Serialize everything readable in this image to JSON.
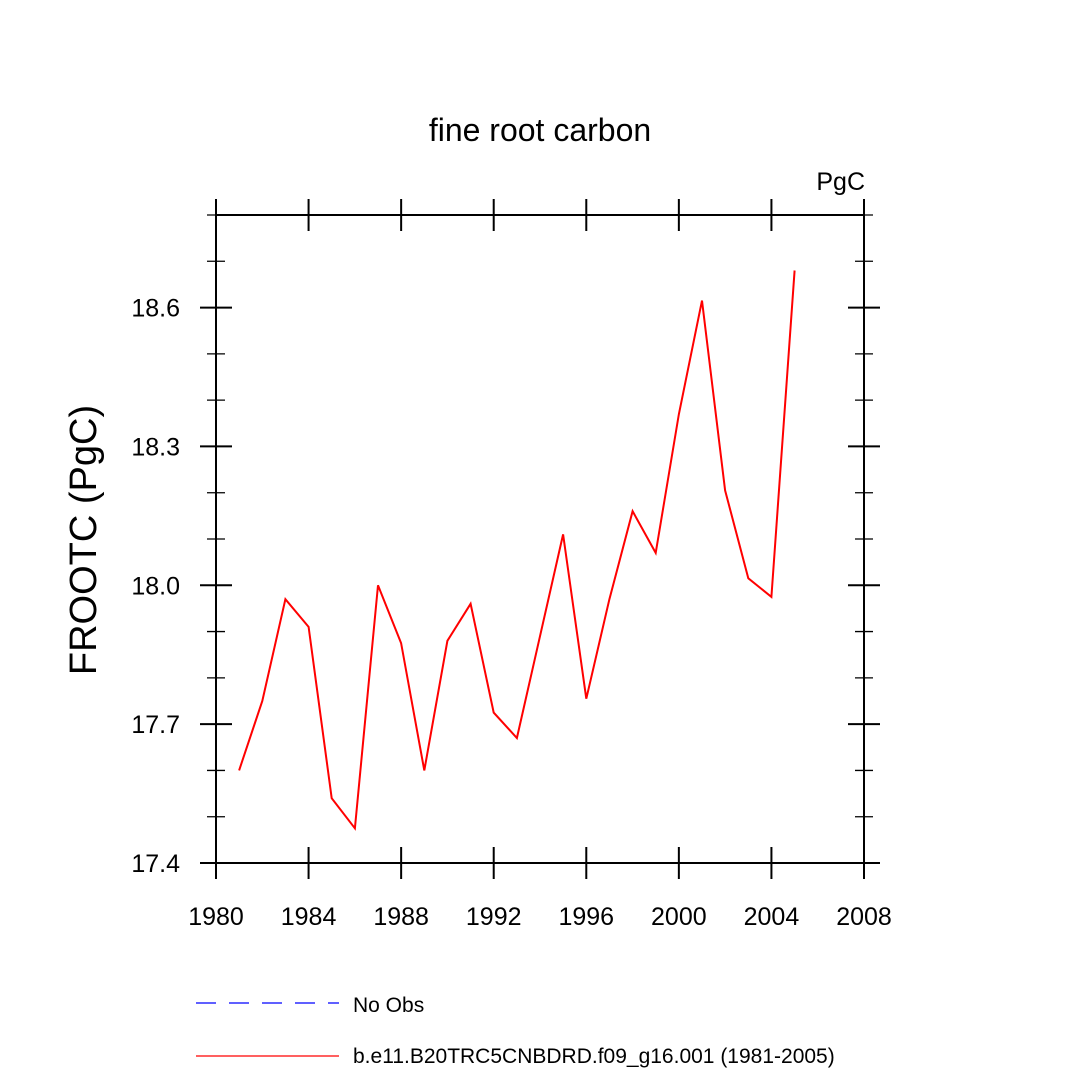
{
  "chart_data": {
    "type": "line",
    "title": "fine root carbon",
    "units_label": "PgC",
    "xlabel": "",
    "ylabel": "FROOTC  (PgC)",
    "xlim": [
      1980,
      2008
    ],
    "ylim": [
      17.4,
      18.8
    ],
    "x_ticks": [
      1980,
      1984,
      1988,
      1992,
      1996,
      2000,
      2004,
      2008
    ],
    "y_ticks": [
      17.4,
      17.7,
      18.0,
      18.3,
      18.6
    ],
    "y_tick_labels": [
      "17.4",
      "17.7",
      "18.0",
      "18.3",
      "18.6"
    ],
    "x_minor_step": 1,
    "y_minor_step": 0.1,
    "grid": false,
    "series": [
      {
        "name": "b.e11.B20TRC5CNBDRD.f09_g16.001 (1981-2005)",
        "color": "#ff0000",
        "style": "solid",
        "x": [
          1981,
          1982,
          1983,
          1984,
          1985,
          1986,
          1987,
          1988,
          1989,
          1990,
          1991,
          1992,
          1993,
          1994,
          1995,
          1996,
          1997,
          1998,
          1999,
          2000,
          2001,
          2002,
          2003,
          2004,
          2005
        ],
        "values": [
          17.6,
          17.75,
          17.97,
          17.91,
          17.54,
          17.475,
          18.0,
          17.875,
          17.6,
          17.88,
          17.96,
          17.725,
          17.67,
          17.89,
          18.11,
          17.755,
          17.97,
          18.16,
          18.07,
          18.37,
          18.615,
          18.205,
          18.015,
          17.975,
          18.68
        ]
      },
      {
        "name": "No Obs",
        "color": "#0000ff",
        "style": "dashed",
        "x": [],
        "values": []
      }
    ],
    "legend": [
      {
        "label": "No Obs",
        "color": "#0000ff",
        "style": "dashed"
      },
      {
        "label": "b.e11.B20TRC5CNBDRD.f09_g16.001 (1981-2005)",
        "color": "#ff0000",
        "style": "solid"
      }
    ]
  }
}
